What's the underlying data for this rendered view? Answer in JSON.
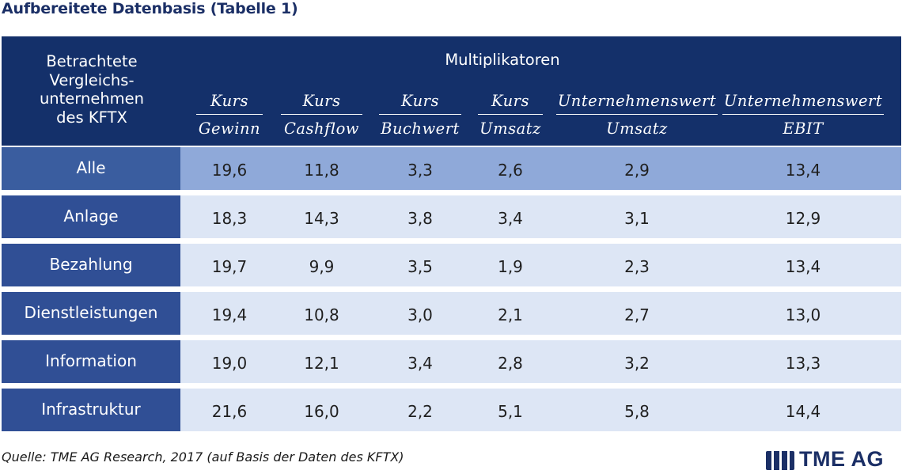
{
  "title": "Aufbereitete Datenbasis (Tabelle 1)",
  "header": {
    "row_label_lines": [
      "Betrachtete",
      "Vergleichs-",
      "unternehmen",
      "des KFTX"
    ],
    "group_label": "Multiplikatoren",
    "columns": [
      {
        "numerator": "Kurs",
        "denominator": "Gewinn"
      },
      {
        "numerator": "Kurs",
        "denominator": "Cashflow"
      },
      {
        "numerator": "Kurs",
        "denominator": "Buchwert"
      },
      {
        "numerator": "Kurs",
        "denominator": "Umsatz"
      },
      {
        "numerator": "Unternehmenswert",
        "denominator": "Umsatz"
      },
      {
        "numerator": "Unternehmenswert",
        "denominator": "EBIT"
      }
    ]
  },
  "rows": [
    {
      "label": "Alle",
      "values": [
        "19,6",
        "11,8",
        "3,3",
        "2,6",
        "2,9",
        "13,4"
      ]
    },
    {
      "label": "Anlage",
      "values": [
        "18,3",
        "14,3",
        "3,8",
        "3,4",
        "3,1",
        "12,9"
      ]
    },
    {
      "label": "Bezahlung",
      "values": [
        "19,7",
        "9,9",
        "3,5",
        "1,9",
        "2,3",
        "13,4"
      ]
    },
    {
      "label": "Dienstleistungen",
      "values": [
        "19,4",
        "10,8",
        "3,0",
        "2,1",
        "2,7",
        "13,0"
      ]
    },
    {
      "label": "Information",
      "values": [
        "19,0",
        "12,1",
        "3,4",
        "2,8",
        "3,2",
        "13,3"
      ]
    },
    {
      "label": "Infrastruktur",
      "values": [
        "21,6",
        "16,0",
        "2,2",
        "5,1",
        "5,8",
        "14,4"
      ]
    }
  ],
  "source": "Quelle: TME AG Research, 2017 (auf Basis der Daten des KFTX)",
  "logo": {
    "text": "TME AG",
    "icon": "tme-logo-icon"
  },
  "colors": {
    "header_bg": "#14306a",
    "title": "#1b2f66",
    "label_bg": "#304f95",
    "highlight_cells_bg": "#8fa9d9",
    "cells_bg": "#dde6f5"
  }
}
